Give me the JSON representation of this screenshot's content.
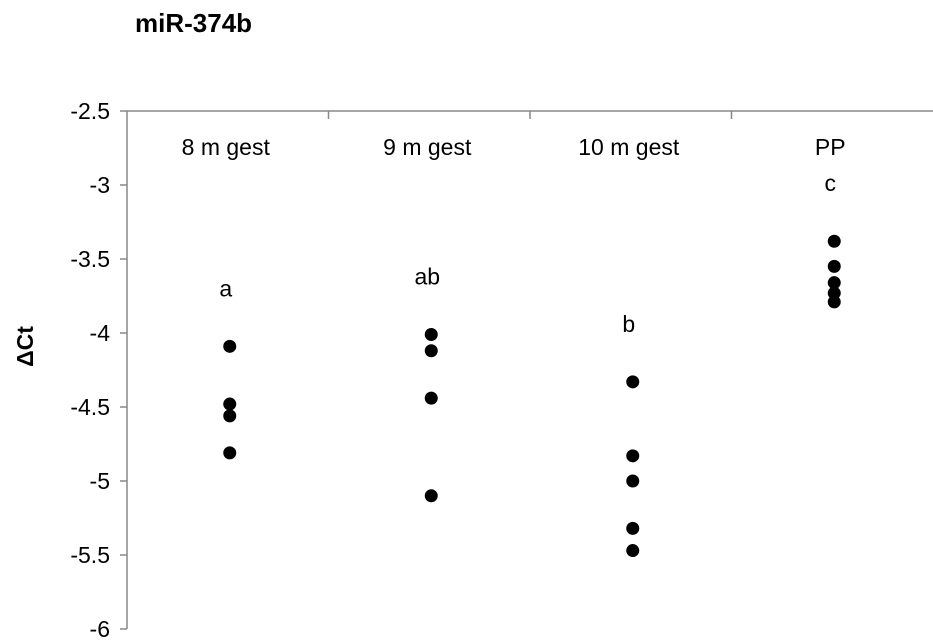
{
  "chart_data": {
    "type": "scatter",
    "title": "miR-374b",
    "xlabel": "",
    "ylabel": "ΔCt",
    "ylim": [
      -6,
      -2.5
    ],
    "yticks": [
      -2.5,
      -3,
      -3.5,
      -4,
      -4.5,
      -5,
      -5.5,
      -6
    ],
    "ytick_labels": [
      "-2.5",
      "-3",
      "-3.5",
      "-4",
      "-4.5",
      "-5",
      "-5.5",
      "-6"
    ],
    "categories": [
      "8 m gest",
      "9 m gest",
      "10 m gest",
      "PP"
    ],
    "significance_letters": [
      "a",
      "ab",
      "b",
      "c"
    ],
    "series": [
      {
        "values": [
          [
            -4.09,
            -4.48,
            -4.56,
            -4.81
          ],
          [
            -4.01,
            -4.12,
            -4.44,
            -5.1
          ],
          [
            -4.33,
            -4.83,
            -5.0,
            -5.32,
            -5.47
          ],
          [
            -3.38,
            -3.55,
            -3.66,
            -3.73,
            -3.79
          ]
        ]
      }
    ],
    "grid": false,
    "colors": {
      "marker": "#000000",
      "axis": "#888888"
    }
  }
}
